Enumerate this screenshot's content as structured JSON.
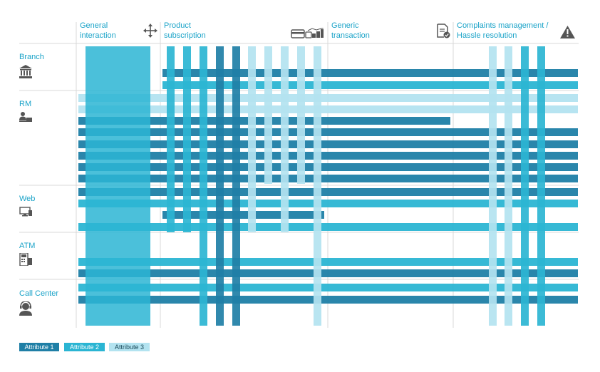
{
  "categories": [
    {
      "key": "general",
      "label": "General\ninteraction",
      "icon": "move-arrows-icon"
    },
    {
      "key": "product",
      "label": "Product\nsubscription",
      "icon": "cards-and-coins-icon"
    },
    {
      "key": "generic",
      "label": "Generic\ntransaction",
      "icon": "document-check-icon"
    },
    {
      "key": "complaints",
      "label": "Complaints management /\nHassle resolution",
      "icon": "warning-triangle-icon"
    }
  ],
  "channels": [
    {
      "key": "branch",
      "label": "Branch",
      "icon": "bank-building-icon"
    },
    {
      "key": "rm",
      "label": "RM",
      "icon": "person-at-desk-icon"
    },
    {
      "key": "web",
      "label": "Web",
      "icon": "computer-screen-icon"
    },
    {
      "key": "atm",
      "label": "ATM",
      "icon": "atm-machine-icon"
    },
    {
      "key": "callcenter",
      "label": "Call Center",
      "icon": "headset-agent-icon"
    }
  ],
  "legend": [
    {
      "label": "Attribute 1",
      "color": "#1f7fa6"
    },
    {
      "label": "Attribute 2",
      "color": "#2bb5d3"
    },
    {
      "label": "Attribute 3",
      "color": "#b3e3f0"
    }
  ],
  "colors": {
    "a1": "#1f7fa6",
    "a2": "#2bb5d3",
    "a3": "#b3e3f0",
    "label": "#1aa3c8",
    "grid": "#d9d9d9"
  }
}
